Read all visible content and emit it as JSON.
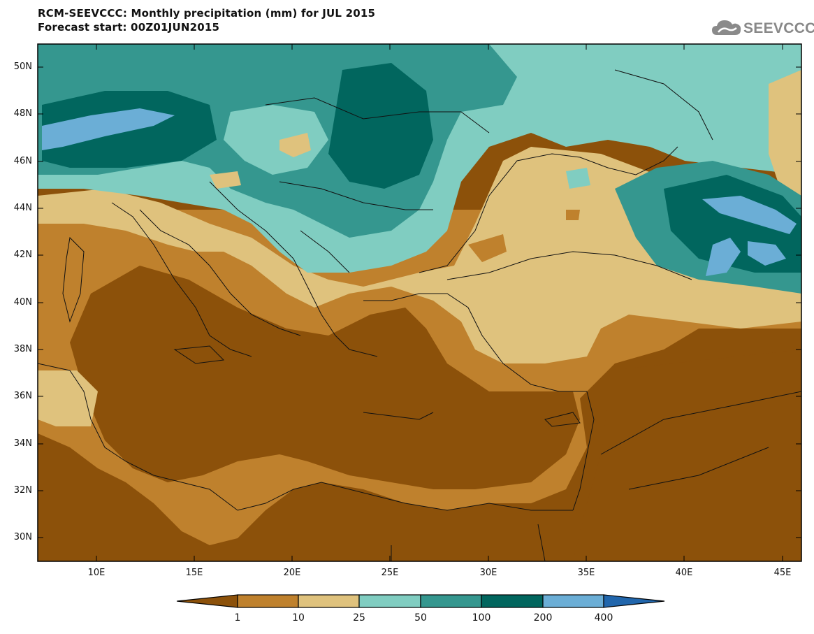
{
  "header": {
    "title": "RCM-SEEVCCC: Monthly precipitation (mm) for JUL 2015",
    "subtitle": "Forecast start: 00Z01JUN2015"
  },
  "logo": {
    "text": "SEEVCCC",
    "icon": "cloud-icon"
  },
  "map": {
    "lon_range": [
      7,
      46
    ],
    "lat_range": [
      29,
      51
    ],
    "lat_labels": [
      "50N",
      "48N",
      "46N",
      "44N",
      "42N",
      "40N",
      "38N",
      "36N",
      "34N",
      "32N",
      "30N"
    ],
    "lon_labels": [
      "10E",
      "15E",
      "20E",
      "25E",
      "30E",
      "35E",
      "40E",
      "45E"
    ]
  },
  "colorbar": {
    "labels": [
      "1",
      "10",
      "25",
      "50",
      "100",
      "200",
      "400"
    ],
    "colors": [
      "#8c510a",
      "#bf812d",
      "#dfc27d",
      "#80cdc1",
      "#35978f",
      "#01665e",
      "#6baed6",
      "#2166ac"
    ]
  },
  "palette": {
    "dark_brown": "#8c510a",
    "brown": "#bf812d",
    "tan": "#dfc27d",
    "light_teal": "#80cdc1",
    "teal": "#35978f",
    "dark_teal": "#01665e",
    "light_blue": "#6baed6",
    "blue": "#2166ac"
  }
}
